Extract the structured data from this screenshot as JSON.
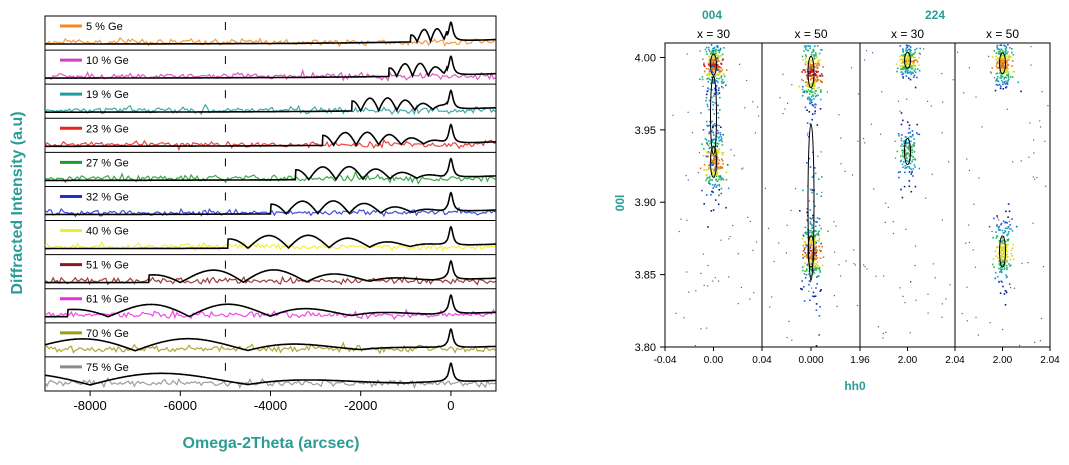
{
  "chart_data": [
    {
      "type": "line",
      "xlabel": "Omega-2Theta (arcsec)",
      "ylabel": "Diffracted Intensity (a.u)",
      "xlim": [
        -9000,
        1000
      ],
      "x_ticks": [
        "-8000",
        "-6000",
        "-4000",
        "-2000",
        "0"
      ],
      "x_tick_values": [
        -8000,
        -6000,
        -4000,
        -2000,
        0
      ],
      "substrate_peak_x": 0,
      "legend_placement": "top-left of each stacked panel",
      "series": [
        {
          "name": "5 % Ge",
          "color": "#f28c1e",
          "layer_peak_x": -450,
          "fringe_period": 300
        },
        {
          "name": "10 % Ge",
          "color": "#d63fb8",
          "layer_peak_x": -850,
          "fringe_period": 350
        },
        {
          "name": "19 % Ge",
          "color": "#1f9c9c",
          "layer_peak_x": -1600,
          "fringe_period": 400
        },
        {
          "name": "23 % Ge",
          "color": "#e8231f",
          "layer_peak_x": -2100,
          "fringe_period": 500
        },
        {
          "name": "27 % Ge",
          "color": "#1a9a2a",
          "layer_peak_x": -2550,
          "fringe_period": 600
        },
        {
          "name": "32 % Ge",
          "color": "#1d2fd0",
          "layer_peak_x": -2950,
          "fringe_period": 700
        },
        {
          "name": "40 % Ge",
          "color": "#eded2a",
          "layer_peak_x": -3600,
          "fringe_period": 900
        },
        {
          "name": "51 % Ge",
          "color": "#8b1a1a",
          "layer_peak_x": -4600,
          "fringe_period": 1400
        },
        {
          "name": "61 % Ge",
          "color": "#ee2ce0",
          "layer_peak_x": -5800,
          "fringe_period": 1800
        },
        {
          "name": "70 % Ge",
          "color": "#9e9a1a",
          "layer_peak_x": -7000,
          "fringe_period": 2500
        },
        {
          "name": "75 % Ge",
          "color": "#8c8c8c",
          "layer_peak_x": -8000,
          "fringe_period": 3500
        }
      ]
    },
    {
      "type": "heatmap",
      "ylabel": "00l",
      "xlabel": "hh0",
      "ylim": [
        3.8,
        4.01
      ],
      "y_ticks": [
        "4.00",
        "3.95",
        "3.90",
        "3.85",
        "3.80"
      ],
      "y_tick_values": [
        4.0,
        3.95,
        3.9,
        3.85,
        3.8
      ],
      "groups": [
        {
          "label": "004",
          "panels": [
            0,
            1
          ]
        },
        {
          "label": "224",
          "panels": [
            2,
            3
          ]
        }
      ],
      "panels": [
        {
          "label": "x = 30",
          "xlim": [
            -0.04,
            0.04
          ],
          "x_ticks": [
            "-0.04",
            "0.00",
            "0.04"
          ],
          "spots": [
            {
              "h": 0.0,
              "l": 3.995,
              "sigma_l": 0.008,
              "intensity": 1.0
            },
            {
              "h": 0.0,
              "l": 3.928,
              "sigma_l": 0.012,
              "intensity": 0.9
            },
            {
              "h": 0.0,
              "l": 3.96,
              "sigma_l": 0.03,
              "intensity": 0.35
            }
          ]
        },
        {
          "label": "x = 50",
          "xlim": [
            -0.04,
            0.04
          ],
          "x_ticks": [
            "0.000"
          ],
          "spots": [
            {
              "h": 0.0,
              "l": 3.99,
              "sigma_l": 0.012,
              "intensity": 1.0
            },
            {
              "h": 0.0,
              "l": 3.866,
              "sigma_l": 0.012,
              "intensity": 0.95
            },
            {
              "h": 0.0,
              "l": 3.9,
              "sigma_l": 0.06,
              "intensity": 0.3
            }
          ]
        },
        {
          "label": "x = 30",
          "xlim": [
            1.96,
            2.04
          ],
          "x_ticks": [
            "1.96",
            "2.00",
            "2.04"
          ],
          "spots": [
            {
              "h": 2.0,
              "l": 3.998,
              "sigma_l": 0.006,
              "intensity": 0.8
            },
            {
              "h": 2.0,
              "l": 3.935,
              "sigma_l": 0.01,
              "intensity": 0.55
            }
          ]
        },
        {
          "label": "x = 50",
          "xlim": [
            1.96,
            2.04
          ],
          "x_ticks": [
            "2.00",
            "2.04"
          ],
          "spots": [
            {
              "h": 2.0,
              "l": 3.996,
              "sigma_l": 0.008,
              "intensity": 0.9
            },
            {
              "h": 2.0,
              "l": 3.866,
              "sigma_l": 0.012,
              "intensity": 0.75
            }
          ]
        }
      ]
    }
  ]
}
